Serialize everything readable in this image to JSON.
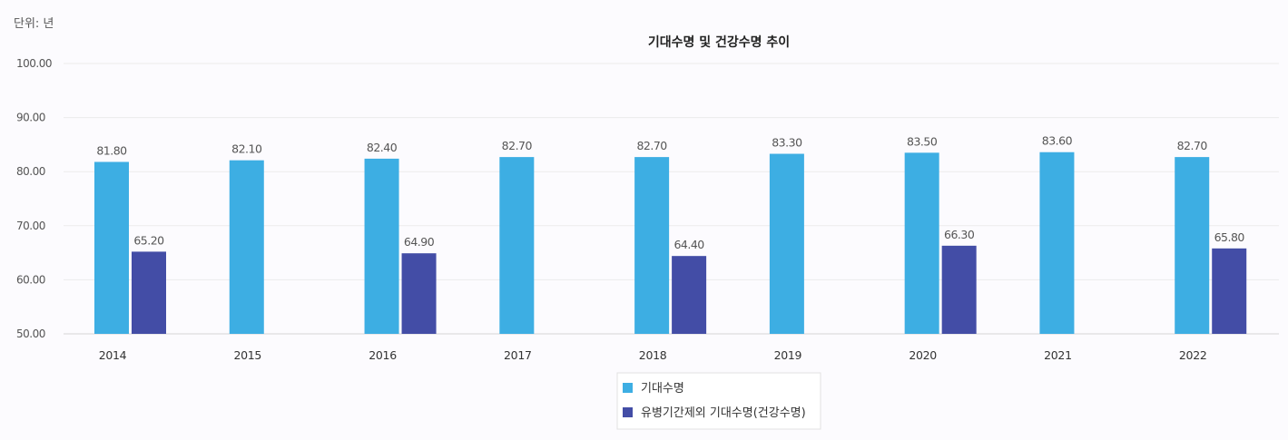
{
  "unit_label": "단위: 년",
  "chart_data": {
    "type": "bar",
    "title": "기대수명 및 건강수명 추이",
    "categories": [
      "2014",
      "2015",
      "2016",
      "2017",
      "2018",
      "2019",
      "2020",
      "2021",
      "2022"
    ],
    "series": [
      {
        "name": "기대수명",
        "color": "#3daee3",
        "values": [
          81.8,
          82.1,
          82.4,
          82.7,
          82.7,
          83.3,
          83.5,
          83.6,
          82.7
        ],
        "labels": [
          "81.80",
          "82.10",
          "82.40",
          "82.70",
          "82.70",
          "83.30",
          "83.50",
          "83.60",
          "82.70"
        ]
      },
      {
        "name": "유병기간제외 기대수명(건강수명)",
        "color": "#434da6",
        "values": [
          65.2,
          null,
          64.9,
          null,
          64.4,
          null,
          66.3,
          null,
          65.8
        ],
        "labels": [
          "65.20",
          null,
          "64.90",
          null,
          "64.40",
          null,
          "66.30",
          null,
          "65.80"
        ]
      }
    ],
    "ylim": [
      50,
      100
    ],
    "yticks": [
      50,
      60,
      70,
      80,
      90,
      100
    ],
    "ytick_labels": [
      "50.00",
      "60.00",
      "70.00",
      "80.00",
      "90.00",
      "100.00"
    ],
    "xlabel": "",
    "ylabel": "",
    "grid": true,
    "legend_position": "bottom"
  }
}
